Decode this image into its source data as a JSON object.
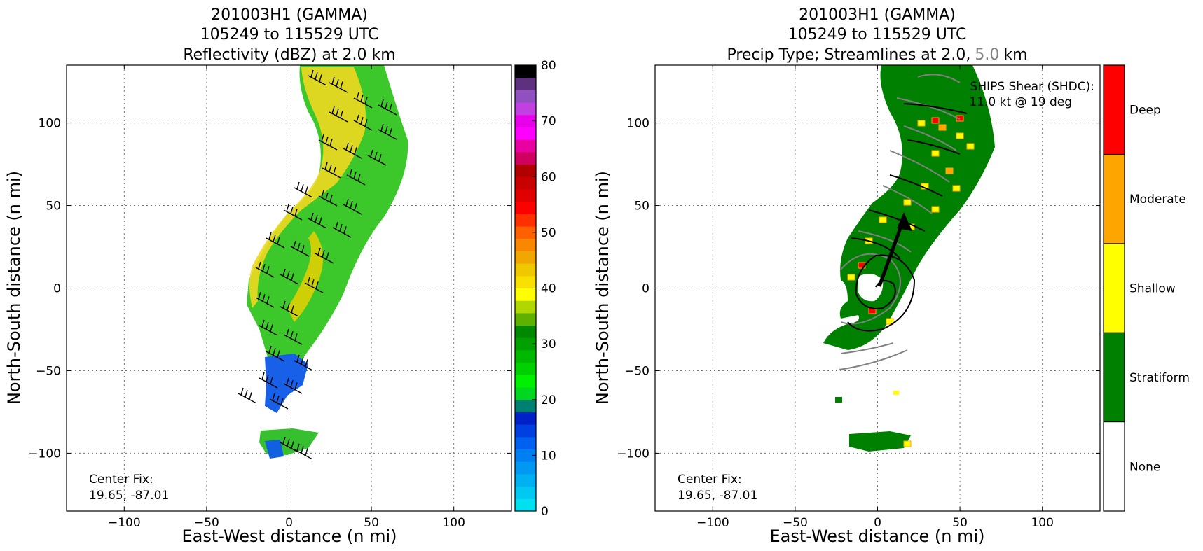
{
  "chart_data": [
    {
      "type": "heatmap",
      "title_lines": [
        "201003H1 (GAMMA)",
        "105249 to 115529 UTC",
        "Reflectivity (dBZ) at 2.0 km"
      ],
      "xlabel": "East-West distance (n mi)",
      "ylabel": "North-South distance (n mi)",
      "xlim": [
        -135,
        135
      ],
      "ylim": [
        -135,
        135
      ],
      "xticks": [
        -100,
        -50,
        0,
        50,
        100
      ],
      "yticks": [
        -100,
        -50,
        0,
        50,
        100
      ],
      "grid": true,
      "annotation_lines": [
        "Center Fix:",
        "19.65, -87.01"
      ],
      "colorbar": {
        "min": 0,
        "max": 80,
        "step": 2.5,
        "ticks": [
          0,
          10,
          20,
          30,
          40,
          50,
          60,
          70,
          80
        ],
        "colors": [
          "#00e0ee",
          "#00c8f0",
          "#00b0f0",
          "#0098f0",
          "#0080f0",
          "#0060f0",
          "#0040e0",
          "#0020c8",
          "#008070",
          "#00d820",
          "#00f000",
          "#00d000",
          "#00b800",
          "#00a000",
          "#008800",
          "#60b000",
          "#b0d800",
          "#ffff00",
          "#f8e000",
          "#f0c800",
          "#f0a800",
          "#f88800",
          "#ff6000",
          "#ff3000",
          "#ff0000",
          "#e00000",
          "#c80000",
          "#b00000",
          "#d00060",
          "#e800a0",
          "#ff00ff",
          "#e800e8",
          "#c040e0",
          "#9050c0",
          "#603080",
          "#000000"
        ]
      },
      "wind_barbs_drawn": true
    },
    {
      "type": "heatmap",
      "title_lines": [
        "201003H1 (GAMMA)",
        "105249 to 115529 UTC",
        "Precip Type; Streamlines at 2.0,",
        "5.0",
        "km"
      ],
      "xlabel": "East-West distance (n mi)",
      "ylabel": "North-South distance (n mi)",
      "xlim": [
        -135,
        135
      ],
      "ylim": [
        -135,
        135
      ],
      "xticks": [
        -100,
        -50,
        0,
        50,
        100
      ],
      "yticks": [
        -100,
        -50,
        0,
        50,
        100
      ],
      "grid": true,
      "annotation_lines": [
        "Center Fix:",
        "19.65, -87.01"
      ],
      "shear_lines": [
        "SHIPS Shear (SHDC):",
        "11.0 kt @ 19 deg"
      ],
      "shear_direction_deg": 19,
      "categories": [
        "None",
        "Stratiform",
        "Shallow",
        "Moderate",
        "Deep"
      ],
      "category_colors": [
        "#ffffff",
        "#008000",
        "#ffff00",
        "#ffa500",
        "#ff0000"
      ],
      "streamline_levels_km": [
        2.0,
        5.0
      ],
      "streamline_colors": [
        "#000000",
        "#808080"
      ]
    }
  ]
}
